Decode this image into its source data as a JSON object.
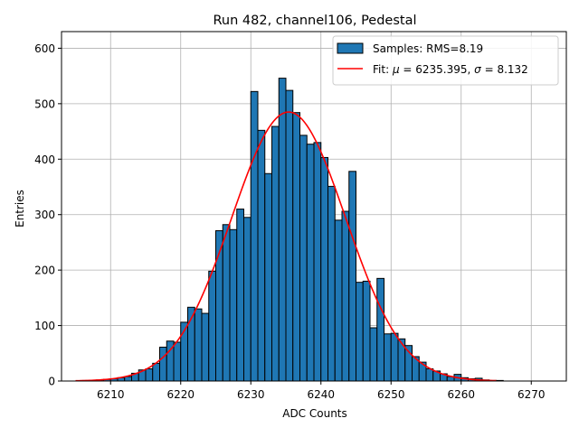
{
  "chart_data": {
    "type": "bar",
    "title": "Run 482, channel106, Pedestal",
    "xlabel": "ADC Counts",
    "ylabel": "Entries",
    "xlim": [
      6203,
      6275
    ],
    "ylim": [
      0,
      630
    ],
    "xticks": [
      6210,
      6220,
      6230,
      6240,
      6250,
      6260,
      6270
    ],
    "yticks": [
      0,
      100,
      200,
      300,
      400,
      500,
      600
    ],
    "grid": true,
    "legend": {
      "placement": "top-right",
      "entries": [
        {
          "label": "Samples: RMS=8.19",
          "kind": "patch"
        },
        {
          "label": "Fit: μ = 6235.395, σ = 8.132",
          "kind": "line",
          "mu_symbol": "μ",
          "sigma_symbol": "σ",
          "prefix": "Fit: ",
          "mu_text": " = 6235.395, ",
          "sigma_text": " = 8.132"
        }
      ]
    },
    "series": [
      {
        "name": "Samples: RMS=8.19",
        "kind": "histogram",
        "color": "#1f77b4",
        "edgecolor": "#000000",
        "bin_width": 1,
        "bin_starts": [
          6205,
          6206,
          6207,
          6208,
          6209,
          6210,
          6211,
          6212,
          6213,
          6214,
          6215,
          6216,
          6217,
          6218,
          6219,
          6220,
          6221,
          6222,
          6223,
          6224,
          6225,
          6226,
          6227,
          6228,
          6229,
          6230,
          6231,
          6232,
          6233,
          6234,
          6235,
          6236,
          6237,
          6238,
          6239,
          6240,
          6241,
          6242,
          6243,
          6244,
          6245,
          6246,
          6247,
          6248,
          6249,
          6250,
          6251,
          6252,
          6253,
          6254,
          6255,
          6256,
          6257,
          6258,
          6259,
          6260,
          6261,
          6262,
          6263,
          6264,
          6265
        ],
        "counts": [
          0,
          1,
          1,
          2,
          3,
          4,
          6,
          8,
          14,
          20,
          22,
          32,
          61,
          72,
          70,
          106,
          133,
          130,
          122,
          198,
          271,
          282,
          273,
          310,
          295,
          522,
          452,
          374,
          459,
          546,
          524,
          484,
          443,
          427,
          430,
          403,
          351,
          290,
          306,
          378,
          178,
          180,
          96,
          185,
          85,
          86,
          76,
          64,
          44,
          34,
          22,
          18,
          13,
          8,
          12,
          6,
          4,
          5,
          2,
          1,
          1
        ]
      },
      {
        "name": "Fit: μ = 6235.395, σ = 8.132",
        "kind": "gaussian-fit",
        "color": "#ff0000",
        "mu": 6235.395,
        "sigma": 8.132,
        "amplitude": 485,
        "x_range": [
          6205,
          6265
        ]
      }
    ]
  }
}
